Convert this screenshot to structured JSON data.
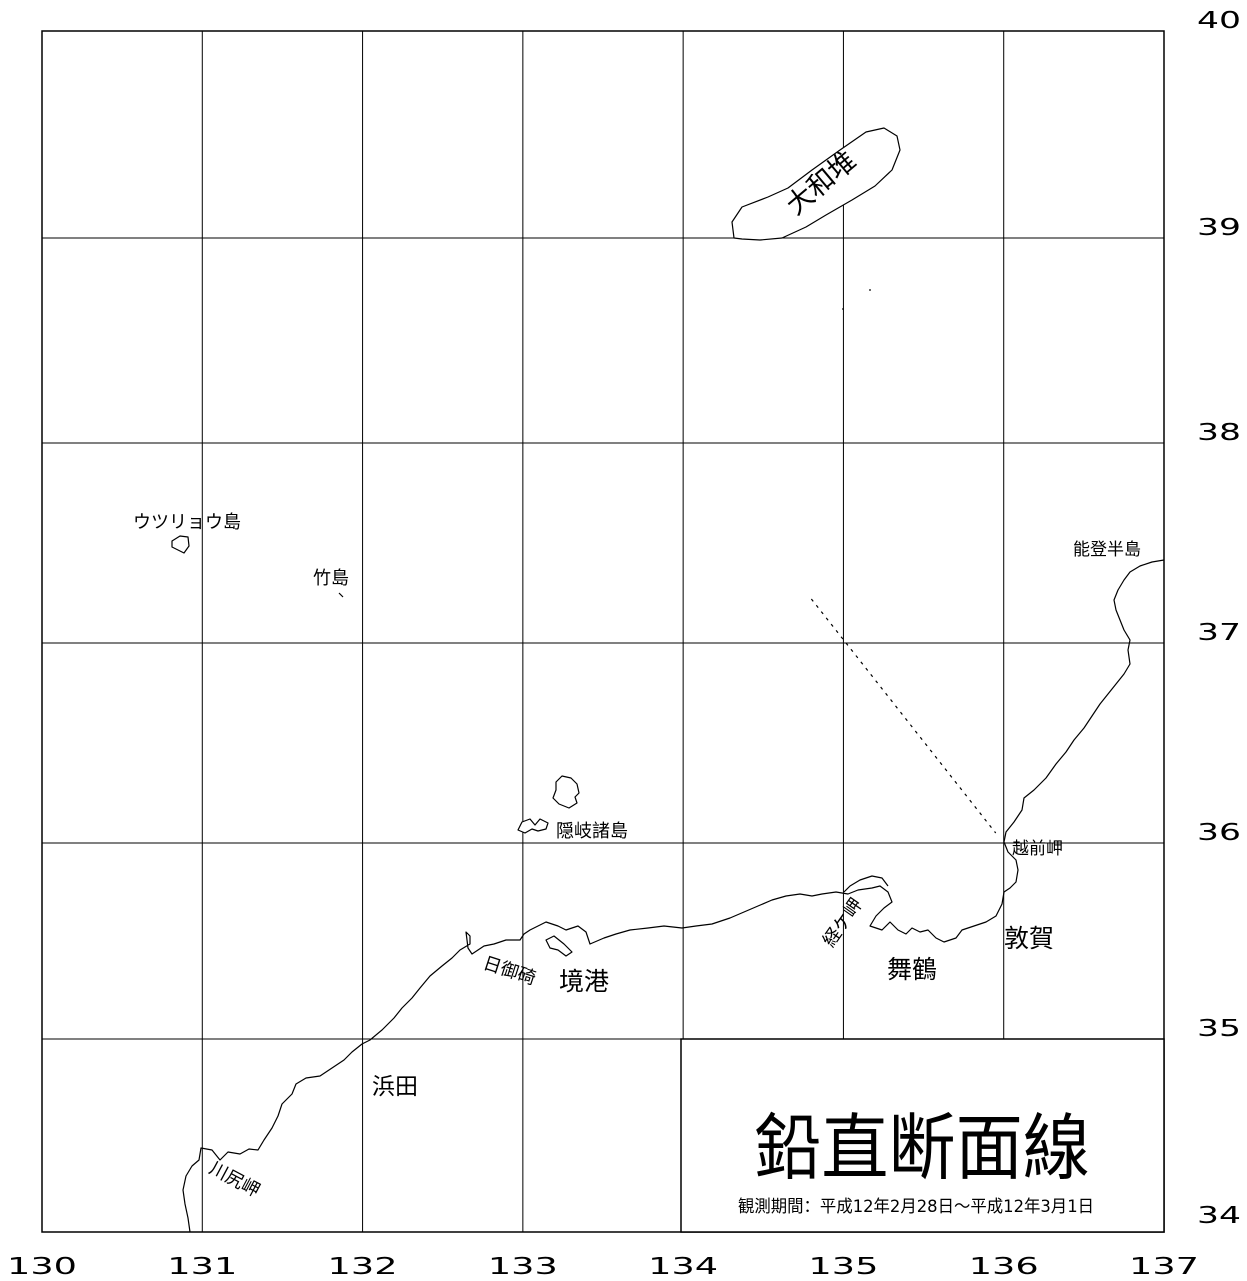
{
  "map": {
    "lon_range": [
      130,
      137
    ],
    "lat_range": [
      34,
      40
    ],
    "lon_ticks": [
      "130",
      "131",
      "132",
      "133",
      "134",
      "135",
      "136",
      "137"
    ],
    "lat_ticks": [
      "34",
      "35",
      "36",
      "37",
      "38",
      "39",
      "40"
    ]
  },
  "labels": {
    "yamato_bank": "大和堆",
    "utsuryo": "ウツリョウ島",
    "takeshima": "竹島",
    "noto": "能登半島",
    "oki": "隠岐諸島",
    "echizen": "越前岬",
    "tsuruga": "敦賀",
    "kyogamisaki": "経ケ岬",
    "maizuru": "舞鶴",
    "hinomisaki": "日御碕",
    "sakaiminato": "境港",
    "hamada": "浜田",
    "kawajiri": "川尻岬"
  },
  "legend": {
    "title": "鉛直断面線",
    "period": "観測期間：平成12年2月28日～平成12年3月1日"
  },
  "section_line": {
    "start": {
      "lon": 134.8,
      "lat": 37.22
    },
    "end": {
      "lon": 135.95,
      "lat": 36.05
    }
  },
  "colors": {
    "ink": "#000000",
    "paper": "#ffffff"
  }
}
